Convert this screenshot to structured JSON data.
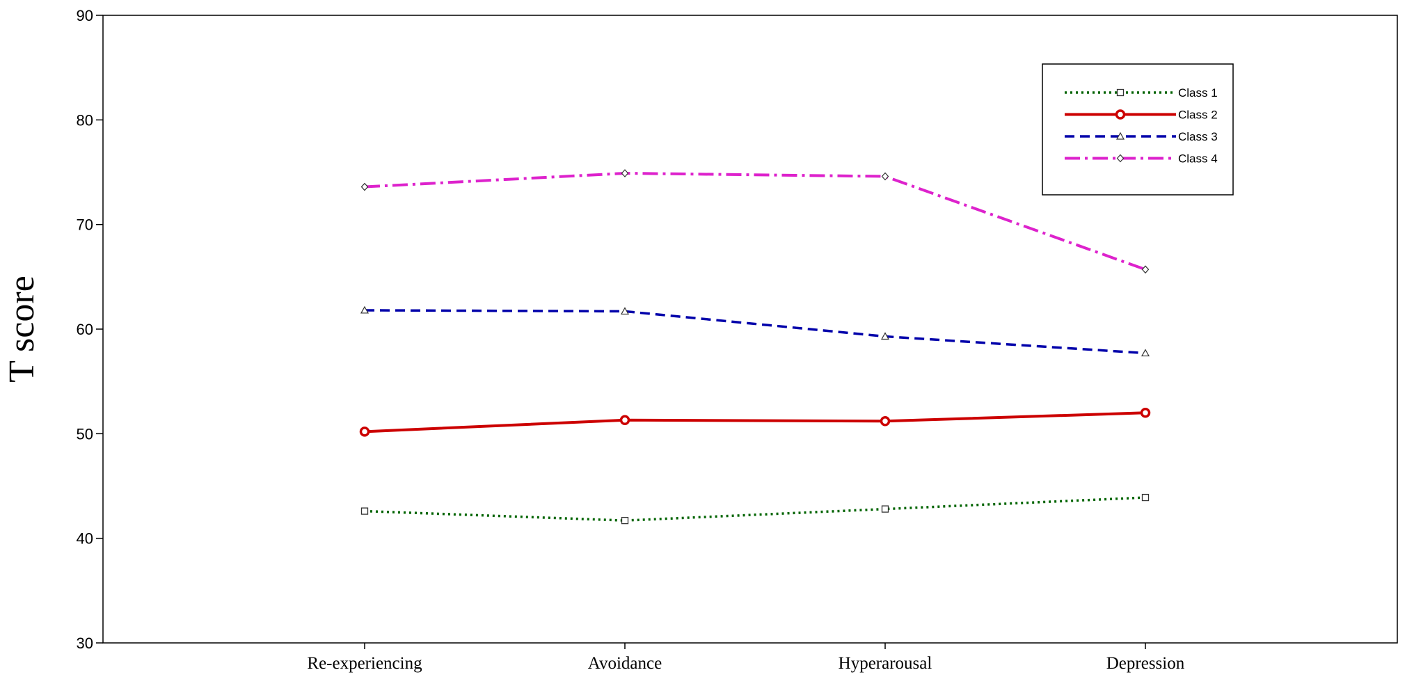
{
  "chart_data": {
    "type": "line",
    "title": "",
    "xlabel": "",
    "ylabel": "T score",
    "categories": [
      "Re-experiencing",
      "Avoidance",
      "Hyperarousal",
      "Depression"
    ],
    "ylim": [
      30,
      90
    ],
    "yticks": [
      30,
      40,
      50,
      60,
      70,
      80,
      90
    ],
    "grid": false,
    "legend_position": "top-right",
    "series": [
      {
        "name": "Class 1",
        "values": [
          42.6,
          41.7,
          42.8,
          43.9
        ],
        "color": "#006400",
        "dash": "dotted",
        "marker": "square"
      },
      {
        "name": "Class 2",
        "values": [
          50.2,
          51.3,
          51.2,
          52.0
        ],
        "color": "#cc0000",
        "dash": "solid",
        "marker": "circle"
      },
      {
        "name": "Class 3",
        "values": [
          61.8,
          61.7,
          59.3,
          57.7
        ],
        "color": "#0000aa",
        "dash": "dashed",
        "marker": "triangle"
      },
      {
        "name": "Class 4",
        "values": [
          73.6,
          74.9,
          74.6,
          65.7
        ],
        "color": "#dd22cc",
        "dash": "dashdot",
        "marker": "diamond"
      }
    ]
  }
}
